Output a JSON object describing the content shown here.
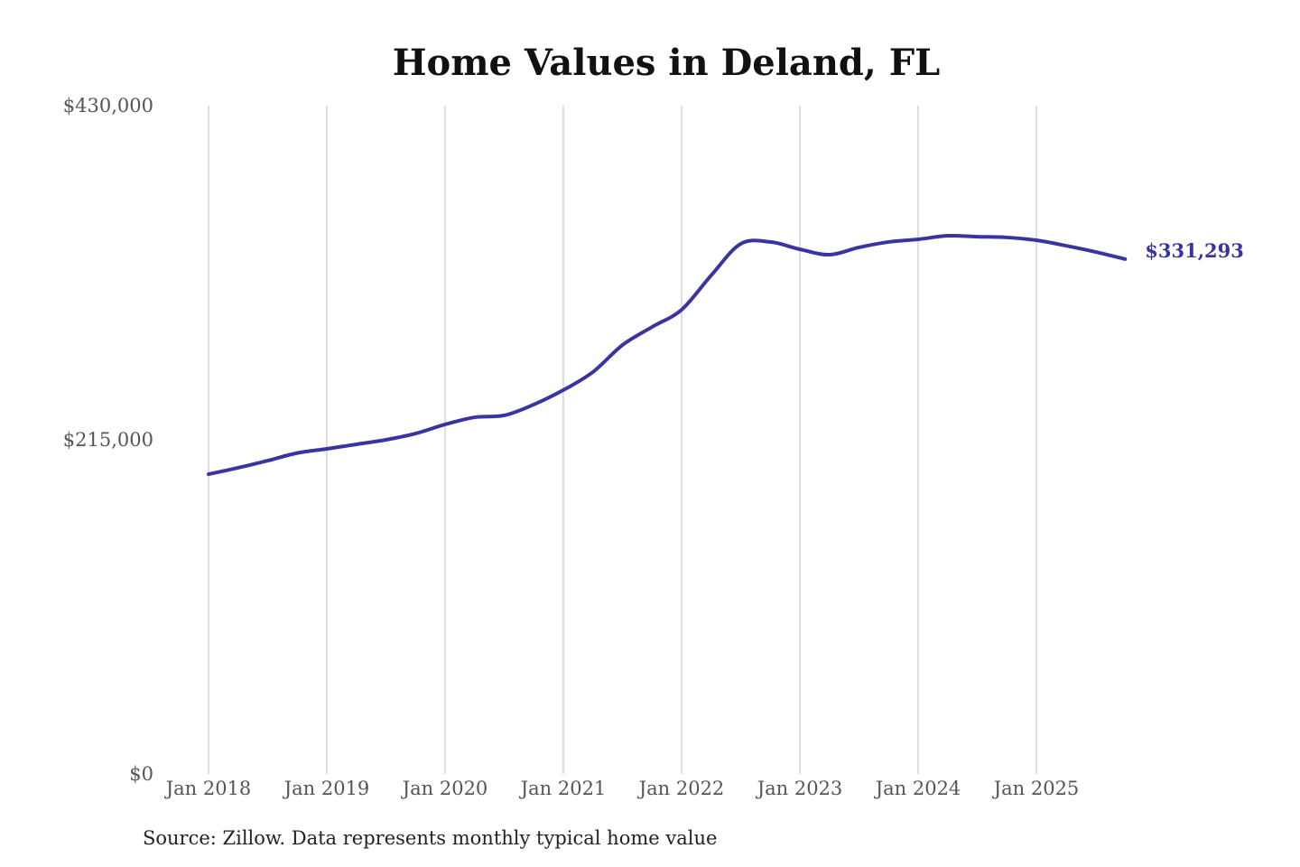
{
  "chart_data": {
    "type": "line",
    "title": "Home Values in Deland, FL",
    "xlabel": "",
    "ylabel": "",
    "ylim": [
      0,
      430000
    ],
    "y_ticks": [
      0,
      215000,
      430000
    ],
    "y_tick_labels": [
      "$0",
      "$215,000",
      "$430,000"
    ],
    "x_tick_labels": [
      "Jan 2018",
      "Jan 2019",
      "Jan 2020",
      "Jan 2021",
      "Jan 2022",
      "Jan 2023",
      "Jan 2024",
      "Jan 2025"
    ],
    "grid": "vertical",
    "line_color": "#3a34a0",
    "end_label": "$331,293",
    "series": [
      {
        "x": [
          "2018-01",
          "2018-04",
          "2018-07",
          "2018-10",
          "2019-01",
          "2019-04",
          "2019-07",
          "2019-10",
          "2020-01",
          "2020-04",
          "2020-07",
          "2020-10",
          "2021-01",
          "2021-04",
          "2021-07",
          "2021-10",
          "2022-01",
          "2022-04",
          "2022-07",
          "2022-10",
          "2023-01",
          "2023-04",
          "2023-07",
          "2023-10",
          "2024-01",
          "2024-04",
          "2024-07",
          "2024-10",
          "2025-01",
          "2025-04",
          "2025-07",
          "2025-10"
        ],
        "values": [
          192900,
          197000,
          201600,
          206500,
          209200,
          212100,
          215000,
          219000,
          224900,
          229500,
          230700,
          237700,
          247000,
          258600,
          276000,
          287600,
          298700,
          320800,
          341100,
          342300,
          337600,
          334100,
          338800,
          342300,
          344000,
          346300,
          345700,
          345200,
          343400,
          339900,
          335900,
          331293
        ]
      }
    ]
  },
  "source": "Source: Zillow. Data represents monthly typical home value"
}
